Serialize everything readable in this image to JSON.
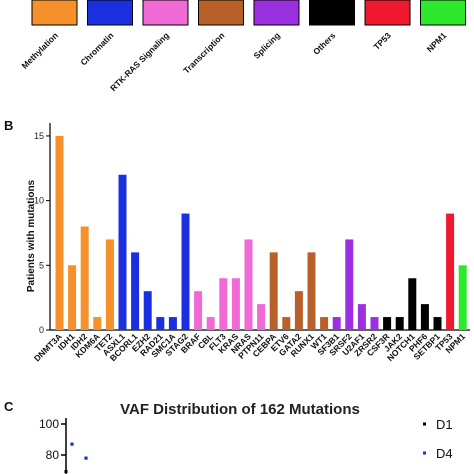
{
  "legend_top": {
    "items": [
      {
        "label": "Methylation",
        "color": "#f5902c"
      },
      {
        "label": "Chromatin",
        "color": "#1a2fe0"
      },
      {
        "label": "RTK-RAS Signaling",
        "color": "#f06ad6"
      },
      {
        "label": "Transcription",
        "color": "#b8602a"
      },
      {
        "label": "Splicing",
        "color": "#9b30e0"
      },
      {
        "label": "Others",
        "color": "#000000"
      },
      {
        "label": "TP53",
        "color": "#f0182e"
      },
      {
        "label": "NPM1",
        "color": "#2ee82e"
      }
    ]
  },
  "panel_b": {
    "letter": "B",
    "chart_data": {
      "type": "bar",
      "ylabel": "Patients with mutations",
      "ylim": [
        0,
        16
      ],
      "yticks": [
        "0",
        "5",
        "10",
        "15"
      ],
      "categories": [
        "DNMT3A",
        "IDH1",
        "IDH2",
        "KDM6A",
        "TET2",
        "ASXL1",
        "BCORL1",
        "EZH2",
        "RAD21",
        "SMC1A",
        "STAG2",
        "BRAF",
        "CBL",
        "FLT3",
        "KRAS",
        "NRAS",
        "PTPN11",
        "CEBPA",
        "ETV6",
        "GATA2",
        "RUNX1",
        "WT1",
        "SF3B1",
        "SRSF2",
        "U2AF1",
        "ZRSR2",
        "CSF3R",
        "JAK2",
        "NOTCH1",
        "PHF6",
        "SETBP1",
        "TP53",
        "NPM1"
      ],
      "values": [
        15,
        5,
        8,
        1,
        7,
        12,
        6,
        3,
        1,
        1,
        9,
        3,
        1,
        4,
        4,
        7,
        2,
        6,
        1,
        3,
        6,
        1,
        1,
        7,
        2,
        1,
        1,
        1,
        4,
        2,
        1,
        9,
        5
      ],
      "groups": [
        "Methylation",
        "Methylation",
        "Methylation",
        "Methylation",
        "Methylation",
        "Chromatin",
        "Chromatin",
        "Chromatin",
        "Chromatin",
        "Chromatin",
        "Chromatin",
        "RTK-RAS Signaling",
        "RTK-RAS Signaling",
        "RTK-RAS Signaling",
        "RTK-RAS Signaling",
        "RTK-RAS Signaling",
        "RTK-RAS Signaling",
        "Transcription",
        "Transcription",
        "Transcription",
        "Transcription",
        "Transcription",
        "Splicing",
        "Splicing",
        "Splicing",
        "Splicing",
        "Others",
        "Others",
        "Others",
        "Others",
        "Others",
        "TP53",
        "NPM1"
      ]
    }
  },
  "panel_c": {
    "letter": "C",
    "title": "VAF Distribution of 162 Mutations",
    "yticks": [
      "100",
      "80"
    ],
    "legend": [
      {
        "label": "D1",
        "color": "#000000"
      },
      {
        "label": "D4",
        "color": "#1a2fe0"
      }
    ],
    "points": [
      {
        "series": "D4",
        "y": 87
      },
      {
        "series": "D4",
        "y": 78
      }
    ]
  }
}
